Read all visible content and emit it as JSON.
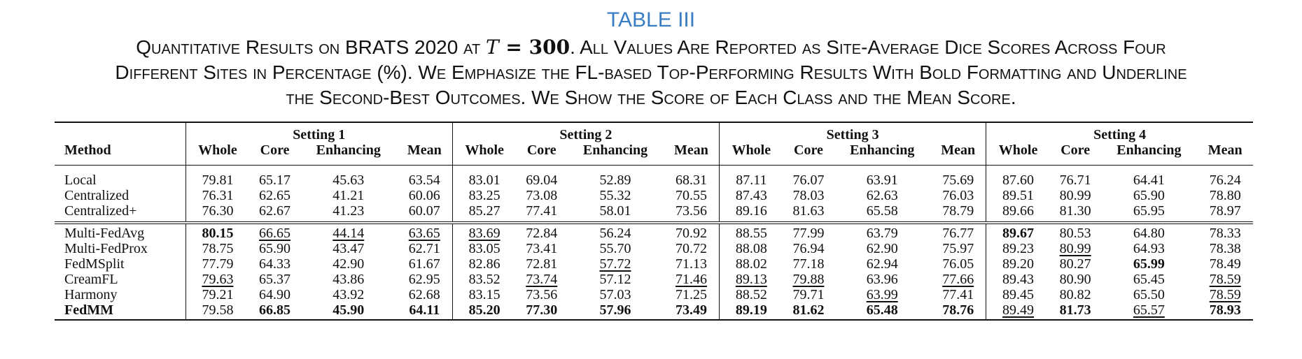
{
  "table_label": "TABLE III",
  "caption": {
    "line1_a": "Quantitative Results on BRATS 2020 at ",
    "math_var": "T",
    "math_eq": " = ",
    "math_val": "300",
    "line1_b": ". All Values Are Reported as Site-Average Dice Scores Across Four",
    "line2": "Different Sites in Percentage (%). We Emphasize the FL-based Top-Performing Results With Bold Formatting and Underline",
    "line3": "the Second-Best Outcomes. We Show the Score of Each Class and the Mean Score."
  },
  "header": {
    "method": "Method",
    "settings": [
      "Setting 1",
      "Setting 2",
      "Setting 3",
      "Setting 4"
    ],
    "subcols": [
      "Whole",
      "Core",
      "Enhancing",
      "Mean"
    ]
  },
  "rows": [
    {
      "method": "Local",
      "bold_method": false,
      "values": [
        "79.81",
        "65.17",
        "45.63",
        "63.54",
        "83.01",
        "69.04",
        "52.89",
        "68.31",
        "87.11",
        "76.07",
        "63.91",
        "75.69",
        "87.60",
        "76.71",
        "64.41",
        "76.24"
      ],
      "fmt": [
        "",
        "",
        "",
        "",
        "",
        "",
        "",
        "",
        "",
        "",
        "",
        "",
        "",
        "",
        "",
        ""
      ]
    },
    {
      "method": "Centralized",
      "bold_method": false,
      "values": [
        "76.31",
        "62.65",
        "41.21",
        "60.06",
        "83.25",
        "73.08",
        "55.32",
        "70.55",
        "87.43",
        "78.03",
        "62.63",
        "76.03",
        "89.51",
        "80.99",
        "65.90",
        "78.80"
      ],
      "fmt": [
        "",
        "",
        "",
        "",
        "",
        "",
        "",
        "",
        "",
        "",
        "",
        "",
        "",
        "",
        "",
        ""
      ]
    },
    {
      "method": "Centralized+",
      "bold_method": false,
      "values": [
        "76.30",
        "62.67",
        "41.23",
        "60.07",
        "85.27",
        "77.41",
        "58.01",
        "73.56",
        "89.16",
        "81.63",
        "65.58",
        "78.79",
        "89.66",
        "81.30",
        "65.95",
        "78.97"
      ],
      "fmt": [
        "",
        "",
        "",
        "",
        "",
        "",
        "",
        "",
        "",
        "",
        "",
        "",
        "",
        "",
        "",
        ""
      ]
    },
    {
      "method": "Multi-FedAvg",
      "bold_method": false,
      "values": [
        "80.15",
        "66.65",
        "44.14",
        "63.65",
        "83.69",
        "72.84",
        "56.24",
        "70.92",
        "88.55",
        "77.99",
        "63.79",
        "76.77",
        "89.67",
        "80.53",
        "64.80",
        "78.33"
      ],
      "fmt": [
        "b",
        "u",
        "u",
        "u",
        "u",
        "",
        "",
        "",
        "",
        "",
        "",
        "",
        "b",
        "",
        "",
        ""
      ]
    },
    {
      "method": "Multi-FedProx",
      "bold_method": false,
      "values": [
        "78.75",
        "65.90",
        "43.47",
        "62.71",
        "83.05",
        "73.41",
        "55.70",
        "70.72",
        "88.08",
        "76.94",
        "62.90",
        "75.97",
        "89.23",
        "80.99",
        "64.93",
        "78.38"
      ],
      "fmt": [
        "",
        "",
        "",
        "",
        "",
        "",
        "",
        "",
        "",
        "",
        "",
        "",
        "",
        "u",
        "",
        ""
      ]
    },
    {
      "method": "FedMSplit",
      "bold_method": false,
      "values": [
        "77.79",
        "64.33",
        "42.90",
        "61.67",
        "82.86",
        "72.81",
        "57.72",
        "71.13",
        "88.02",
        "77.18",
        "62.94",
        "76.05",
        "89.20",
        "80.27",
        "65.99",
        "78.49"
      ],
      "fmt": [
        "",
        "",
        "",
        "",
        "",
        "",
        "u",
        "",
        "",
        "",
        "",
        "",
        "",
        "",
        "b",
        ""
      ]
    },
    {
      "method": "CreamFL",
      "bold_method": false,
      "values": [
        "79.63",
        "65.37",
        "43.86",
        "62.95",
        "83.52",
        "73.74",
        "57.12",
        "71.46",
        "89.13",
        "79.88",
        "63.96",
        "77.66",
        "89.43",
        "80.90",
        "65.45",
        "78.59"
      ],
      "fmt": [
        "u",
        "",
        "",
        "",
        "",
        "u",
        "",
        "u",
        "u",
        "u",
        "",
        "u",
        "",
        "",
        "",
        "u"
      ]
    },
    {
      "method": "Harmony",
      "bold_method": false,
      "values": [
        "79.21",
        "64.90",
        "43.92",
        "62.68",
        "83.15",
        "73.56",
        "57.03",
        "71.25",
        "88.52",
        "79.71",
        "63.99",
        "77.41",
        "89.45",
        "80.82",
        "65.50",
        "78.59"
      ],
      "fmt": [
        "",
        "",
        "",
        "",
        "",
        "",
        "",
        "",
        "",
        "",
        "u",
        "",
        "",
        "",
        "",
        "u"
      ]
    },
    {
      "method": "FedMM",
      "bold_method": true,
      "values": [
        "79.58",
        "66.85",
        "45.90",
        "64.11",
        "85.20",
        "77.30",
        "57.96",
        "73.49",
        "89.19",
        "81.62",
        "65.48",
        "78.76",
        "89.49",
        "81.73",
        "65.57",
        "78.93"
      ],
      "fmt": [
        "",
        "b",
        "b",
        "b",
        "b",
        "b",
        "b",
        "b",
        "b",
        "b",
        "b",
        "b",
        "u",
        "b",
        "u",
        "b"
      ]
    }
  ]
}
